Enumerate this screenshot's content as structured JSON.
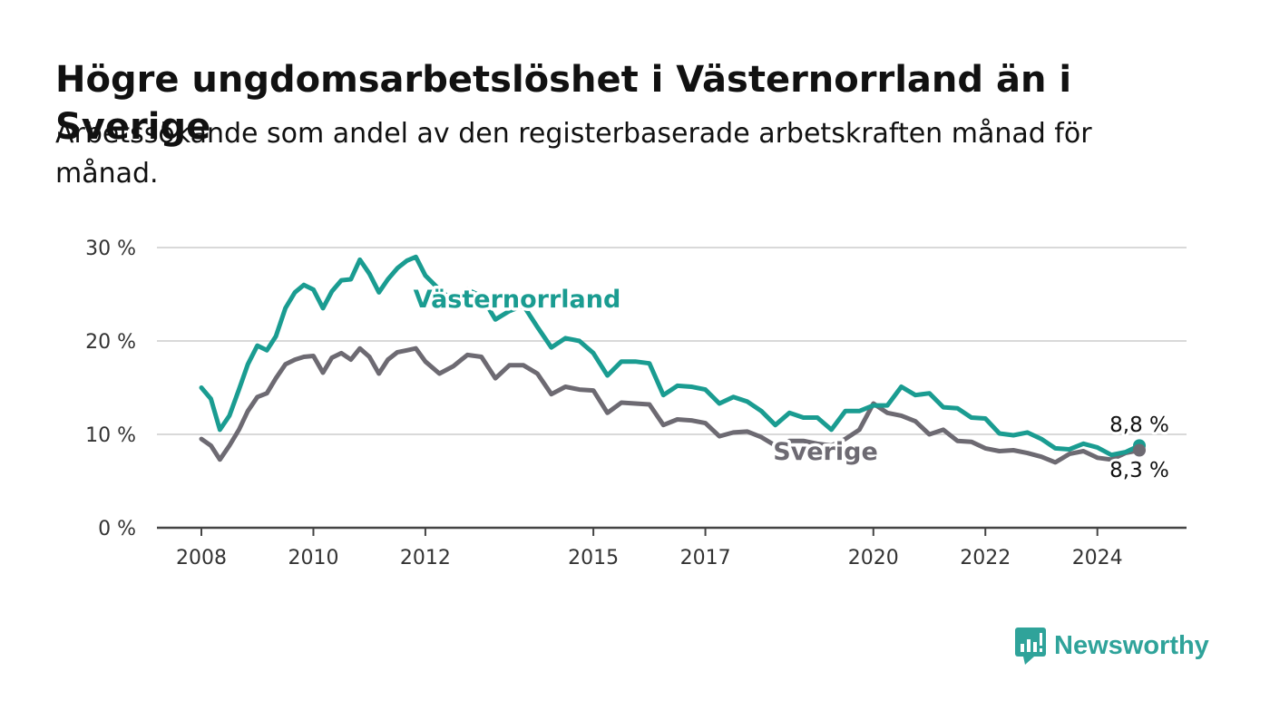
{
  "header": {
    "title": "Högre ungdomsarbetslöshet i Västernorrland än i Sverige",
    "subtitle": "Arbetssökande som andel av den registerbaserade arbetskraften månad för månad."
  },
  "brand": {
    "name": "Newsworthy",
    "icon": "newsworthy-chart-bubble-icon",
    "color": "#2fa39a"
  },
  "chart_data": {
    "type": "line",
    "y_ticks": [
      "0 %",
      "10 %",
      "20 %",
      "30 %"
    ],
    "ylim": [
      0,
      30
    ],
    "x_ticks": [
      "2008",
      "2010",
      "2012",
      "2015",
      "2017",
      "2020",
      "2022",
      "2024"
    ],
    "x_tick_values": [
      2008,
      2010,
      2012,
      2015,
      2017,
      2020,
      2022,
      2024
    ],
    "xlim": [
      2008,
      2024.75
    ],
    "grid": true,
    "series": [
      {
        "name": "Västernorrland",
        "color": "#1a9c91",
        "end_label": "8,8 %",
        "x": [
          2008,
          2008.17,
          2008.33,
          2008.5,
          2008.67,
          2008.83,
          2009,
          2009.17,
          2009.33,
          2009.5,
          2009.67,
          2009.83,
          2010,
          2010.17,
          2010.33,
          2010.5,
          2010.67,
          2010.83,
          2011,
          2011.17,
          2011.33,
          2011.5,
          2011.67,
          2011.83,
          2012,
          2012.25,
          2012.5,
          2012.75,
          2013,
          2013.25,
          2013.5,
          2013.75,
          2014,
          2014.25,
          2014.5,
          2014.75,
          2015,
          2015.25,
          2015.5,
          2015.75,
          2016,
          2016.25,
          2016.5,
          2016.75,
          2017,
          2017.25,
          2017.5,
          2017.75,
          2018,
          2018.25,
          2018.5,
          2018.75,
          2019,
          2019.25,
          2019.5,
          2019.75,
          2020,
          2020.25,
          2020.5,
          2020.75,
          2021,
          2021.25,
          2021.5,
          2021.75,
          2022,
          2022.25,
          2022.5,
          2022.75,
          2023,
          2023.25,
          2023.5,
          2023.75,
          2024,
          2024.25,
          2024.5,
          2024.75
        ],
        "y": [
          15,
          13.8,
          10.5,
          12,
          14.8,
          17.5,
          19.5,
          19,
          20.5,
          23.5,
          25.2,
          26,
          25.5,
          23.5,
          25.3,
          26.5,
          26.6,
          28.7,
          27.2,
          25.2,
          26.6,
          27.8,
          28.6,
          29,
          27,
          25.5,
          24.3,
          25.5,
          24.8,
          22.3,
          23.2,
          23.8,
          21.5,
          19.3,
          20.3,
          20,
          18.7,
          16.3,
          17.8,
          17.8,
          17.6,
          14.2,
          15.2,
          15.1,
          14.8,
          13.3,
          14,
          13.5,
          12.5,
          11,
          12.3,
          11.8,
          11.8,
          10.5,
          12.5,
          12.5,
          13.1,
          13.1,
          15.1,
          14.2,
          14.4,
          12.9,
          12.8,
          11.8,
          11.7,
          10.1,
          9.9,
          10.2,
          9.5,
          8.5,
          8.4,
          9,
          8.6,
          7.8,
          8.1,
          8.8
        ]
      },
      {
        "name": "Sverige",
        "color": "#6d6a72",
        "end_label": "8,3 %",
        "x": [
          2008,
          2008.17,
          2008.33,
          2008.5,
          2008.67,
          2008.83,
          2009,
          2009.17,
          2009.33,
          2009.5,
          2009.67,
          2009.83,
          2010,
          2010.17,
          2010.33,
          2010.5,
          2010.67,
          2010.83,
          2011,
          2011.17,
          2011.33,
          2011.5,
          2011.67,
          2011.83,
          2012,
          2012.25,
          2012.5,
          2012.75,
          2013,
          2013.25,
          2013.5,
          2013.75,
          2014,
          2014.25,
          2014.5,
          2014.75,
          2015,
          2015.25,
          2015.5,
          2015.75,
          2016,
          2016.25,
          2016.5,
          2016.75,
          2017,
          2017.25,
          2017.5,
          2017.75,
          2018,
          2018.25,
          2018.5,
          2018.75,
          2019,
          2019.25,
          2019.5,
          2019.75,
          2020,
          2020.25,
          2020.5,
          2020.75,
          2021,
          2021.25,
          2021.5,
          2021.75,
          2022,
          2022.25,
          2022.5,
          2022.75,
          2023,
          2023.25,
          2023.5,
          2023.75,
          2024,
          2024.25,
          2024.5,
          2024.75
        ],
        "y": [
          9.5,
          8.8,
          7.3,
          8.8,
          10.5,
          12.5,
          14,
          14.4,
          16,
          17.5,
          18,
          18.3,
          18.4,
          16.6,
          18.2,
          18.7,
          18,
          19.2,
          18.3,
          16.5,
          18,
          18.8,
          19,
          19.2,
          17.8,
          16.5,
          17.3,
          18.5,
          18.3,
          16,
          17.4,
          17.4,
          16.5,
          14.3,
          15.1,
          14.8,
          14.7,
          12.3,
          13.4,
          13.3,
          13.2,
          11,
          11.6,
          11.5,
          11.2,
          9.8,
          10.2,
          10.3,
          9.7,
          8.8,
          9.3,
          9.3,
          9,
          8.8,
          9.5,
          10.5,
          13.3,
          12.3,
          12,
          11.4,
          10,
          10.5,
          9.3,
          9.2,
          8.5,
          8.2,
          8.3,
          8,
          7.6,
          7,
          7.9,
          8.2,
          7.5,
          7.3,
          8,
          8.3
        ]
      }
    ]
  }
}
